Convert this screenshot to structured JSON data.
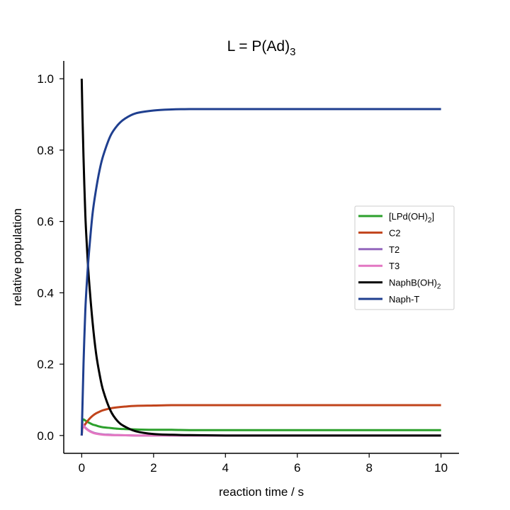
{
  "chart_data": {
    "type": "line",
    "title": {
      "main": "L = P(Ad)",
      "sub": "3"
    },
    "xlabel": "reaction time / s",
    "ylabel": "relative population",
    "xlim": [
      -0.5,
      10.5
    ],
    "ylim": [
      -0.05,
      1.05
    ],
    "xticks": [
      0,
      2,
      4,
      6,
      8,
      10
    ],
    "xtick_labels": [
      "0",
      "2",
      "4",
      "6",
      "8",
      "10"
    ],
    "yticks": [
      0.0,
      0.2,
      0.4,
      0.6,
      0.8,
      1.0
    ],
    "ytick_labels": [
      "0.0",
      "0.2",
      "0.4",
      "0.6",
      "0.8",
      "1.0"
    ],
    "grid": false,
    "legend_position": "right",
    "series": [
      {
        "name": "[LPd(OH)",
        "name_sub": "2",
        "name_tail": "]",
        "color": "#2ca02c",
        "x": [
          0,
          0.02,
          0.05,
          0.1,
          0.2,
          0.3,
          0.4,
          0.5,
          0.6,
          0.8,
          1.0,
          1.2,
          1.5,
          2.0,
          2.5,
          3.0,
          4.0,
          5.0,
          6.0,
          8.0,
          10.0
        ],
        "y": [
          0.0,
          0.04,
          0.045,
          0.042,
          0.036,
          0.031,
          0.028,
          0.025,
          0.023,
          0.021,
          0.019,
          0.018,
          0.017,
          0.016,
          0.016,
          0.015,
          0.015,
          0.015,
          0.015,
          0.015,
          0.015
        ]
      },
      {
        "name": "C2",
        "color": "#c1441c",
        "x": [
          0,
          0.02,
          0.05,
          0.1,
          0.2,
          0.3,
          0.4,
          0.5,
          0.6,
          0.8,
          1.0,
          1.2,
          1.5,
          2.0,
          2.5,
          3.0,
          4.0,
          5.0,
          6.0,
          8.0,
          10.0
        ],
        "y": [
          0.0,
          0.02,
          0.025,
          0.032,
          0.045,
          0.055,
          0.062,
          0.067,
          0.071,
          0.076,
          0.079,
          0.081,
          0.083,
          0.084,
          0.085,
          0.085,
          0.085,
          0.085,
          0.085,
          0.085,
          0.085
        ]
      },
      {
        "name": "T2",
        "color": "#9467bd",
        "x": [
          0,
          0.02,
          0.05,
          0.1,
          0.2,
          0.3,
          0.4,
          0.6,
          0.8,
          1.0,
          1.5,
          2.0,
          3.0,
          5.0,
          10.0
        ],
        "y": [
          0.0,
          0.03,
          0.028,
          0.022,
          0.014,
          0.009,
          0.006,
          0.003,
          0.002,
          0.001,
          0.0,
          0.0,
          0.0,
          0.0,
          0.0
        ]
      },
      {
        "name": "T3",
        "color": "#e377c2",
        "x": [
          0,
          0.02,
          0.05,
          0.1,
          0.2,
          0.3,
          0.4,
          0.6,
          0.8,
          1.0,
          1.5,
          2.0,
          3.0,
          5.0,
          10.0
        ],
        "y": [
          0.0,
          0.03,
          0.027,
          0.021,
          0.013,
          0.008,
          0.005,
          0.002,
          0.001,
          0.001,
          0.0,
          0.0,
          0.0,
          0.0,
          0.0
        ]
      },
      {
        "name": "NaphB(OH)",
        "name_sub": "2",
        "name_tail": "",
        "color": "#000000",
        "x": [
          0,
          0.02,
          0.05,
          0.1,
          0.15,
          0.2,
          0.3,
          0.4,
          0.5,
          0.6,
          0.8,
          1.0,
          1.2,
          1.5,
          2.0,
          2.5,
          3.0,
          4.0,
          5.0,
          6.0,
          8.0,
          10.0
        ],
        "y": [
          1.0,
          0.9,
          0.78,
          0.62,
          0.52,
          0.44,
          0.32,
          0.23,
          0.17,
          0.125,
          0.07,
          0.04,
          0.025,
          0.012,
          0.004,
          0.002,
          0.001,
          0.0,
          0.0,
          0.0,
          0.0,
          0.0
        ]
      },
      {
        "name": "Naph-T",
        "color": "#1f3f8f",
        "x": [
          0,
          0.02,
          0.05,
          0.1,
          0.15,
          0.2,
          0.3,
          0.4,
          0.5,
          0.6,
          0.8,
          1.0,
          1.2,
          1.5,
          2.0,
          2.5,
          3.0,
          4.0,
          5.0,
          6.0,
          8.0,
          10.0
        ],
        "y": [
          0.0,
          0.08,
          0.2,
          0.35,
          0.44,
          0.51,
          0.62,
          0.69,
          0.745,
          0.785,
          0.84,
          0.87,
          0.888,
          0.903,
          0.911,
          0.914,
          0.915,
          0.915,
          0.915,
          0.915,
          0.915,
          0.915
        ]
      }
    ]
  }
}
